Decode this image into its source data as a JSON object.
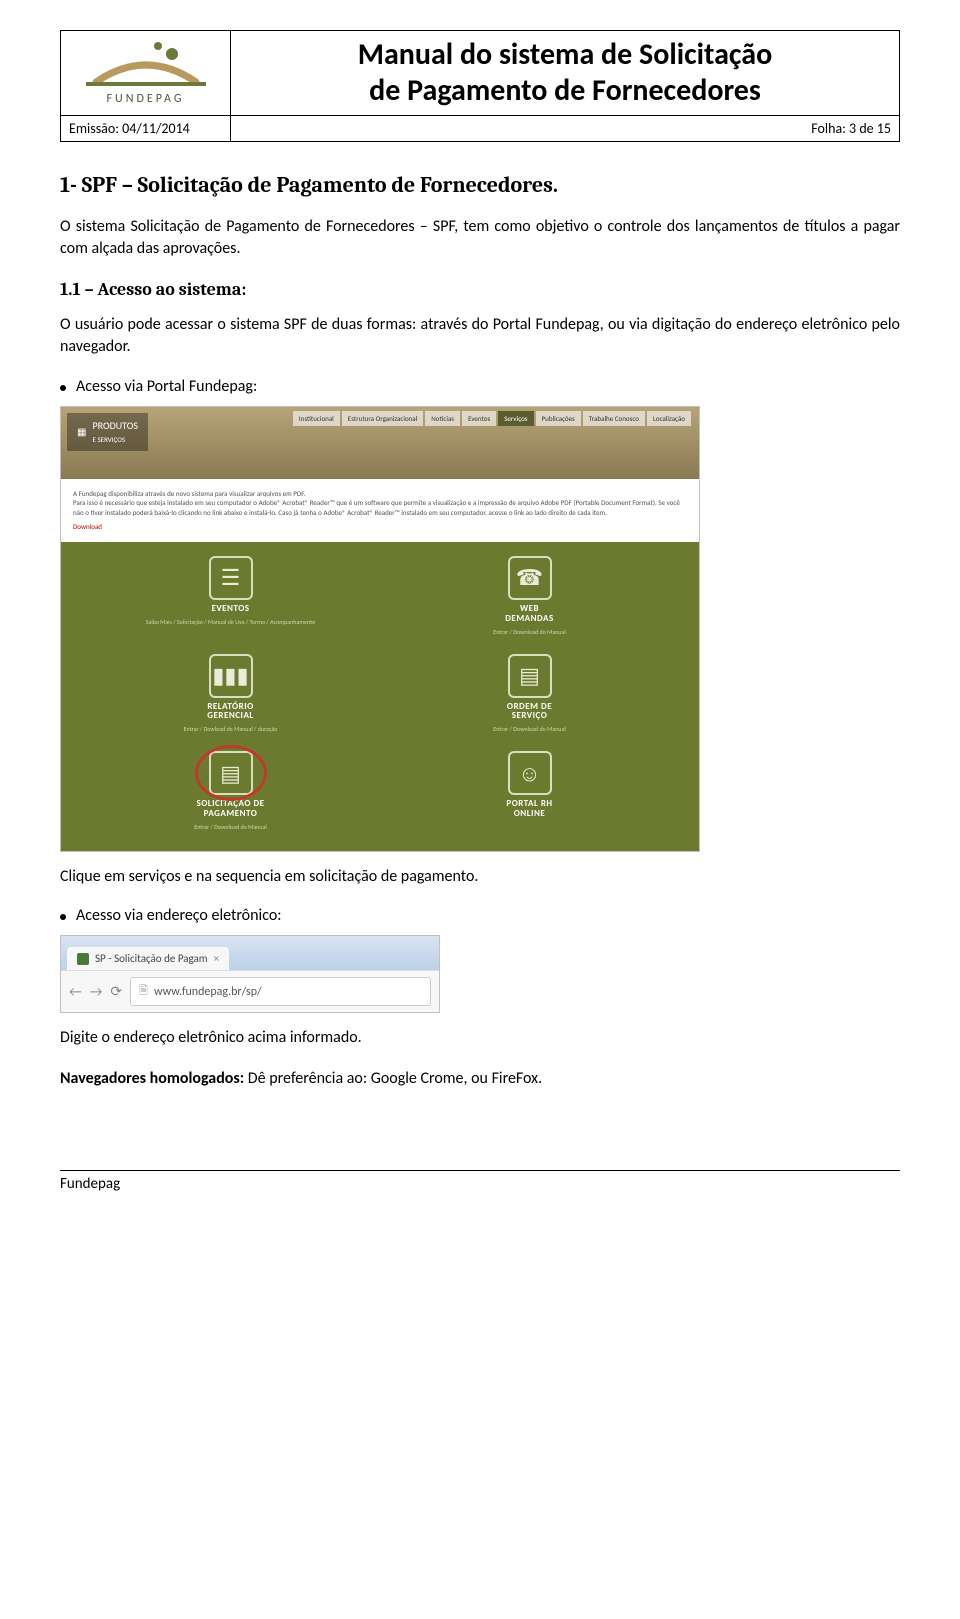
{
  "header": {
    "logo_label": "FUNDEPAG",
    "title_line1": "Manual do sistema de Solicitação",
    "title_line2": "de Pagamento de Fornecedores",
    "emission": "Emissão: 04/11/2014",
    "folha": "Folha: 3 de 15"
  },
  "section1": {
    "heading": "1- SPF – Solicitação de Pagamento de Fornecedores.",
    "intro": "O sistema Solicitação de Pagamento de Fornecedores – SPF, tem como objetivo o controle dos lançamentos de títulos a pagar com alçada das aprovações."
  },
  "section11": {
    "heading": "1.1 – Acesso ao sistema:",
    "intro": "O usuário pode acessar o sistema SPF de duas formas: através do Portal Fundepag, ou via digitação do endereço eletrônico pelo navegador.",
    "bullet1": "Acesso via Portal Fundepag:",
    "after_portal": "Clique em serviços e na sequencia em solicitação de pagamento.",
    "bullet2": "Acesso via endereço eletrônico:",
    "after_browser": "Digite o endereço eletrônico acima informado.",
    "navegadores_bold": "Navegadores homologados:",
    "navegadores_rest": " Dê preferência ao: Google Crome, ou FireFox."
  },
  "portal": {
    "produtos_label": "PRODUTOS",
    "produtos_sub": "E SERVIÇOS",
    "nav": [
      "Institucional",
      "Estrutura Organizacional",
      "Notícias",
      "Eventos",
      "Serviços",
      "Publicações",
      "Trabalhe Conosco",
      "Localização"
    ],
    "nav_active_index": 4,
    "desc_line1": "A Fundepag disponibiliza através de novo sistema para visualizar arquivos em PDF.",
    "desc_line2": "Para isso é necessário que esteja instalado em seu computador o Adobe® Acrobat® Reader™ que é um software que permite a visualização e a impressão de arquivo Adobe PDF (Portable Document Format). Se você não o tiver instalado poderá baixá-lo clicando no link abaixo e instalá-lo. Caso já tenha o Adobe® Acrobat® Reader™ instalado em seu computador, acesse o link ao lado direito de cada item.",
    "desc_download": "Download",
    "cards": [
      {
        "title": "EVENTOS",
        "sub": "Saiba Mais / Solicitação / Manual de Uso / Termo / Acompanhamento",
        "glyph": "☰"
      },
      {
        "title": "WEB DEMANDAS",
        "sub": "Entrar / Download do Manual",
        "glyph": "☎"
      },
      {
        "title": "RELATÓRIO GERENCIAL",
        "sub": "Entrar / Dowload de Manual / duração",
        "glyph": "▮▮▮"
      },
      {
        "title": "ORDEM DE SERVIÇO",
        "sub": "Entrar / Download do Manual",
        "glyph": "▤"
      },
      {
        "title": "SOLICITAÇÃO DE PAGAMENTO",
        "sub": "Entrar / Download do Manual",
        "glyph": "▤",
        "highlight": true
      },
      {
        "title": "PORTAL RH ONLINE",
        "sub": "",
        "glyph": "☺"
      }
    ],
    "colors": {
      "grid_bg": "#6b7a2f",
      "banner_top": "#b7a478",
      "banner_bottom": "#8a7a52",
      "highlight_ring": "#c0392b"
    }
  },
  "browser": {
    "tab_label": "SP - Solicitação de Pagam",
    "url": "www.fundepag.br/sp/"
  },
  "footer": {
    "text": "Fundepag"
  }
}
